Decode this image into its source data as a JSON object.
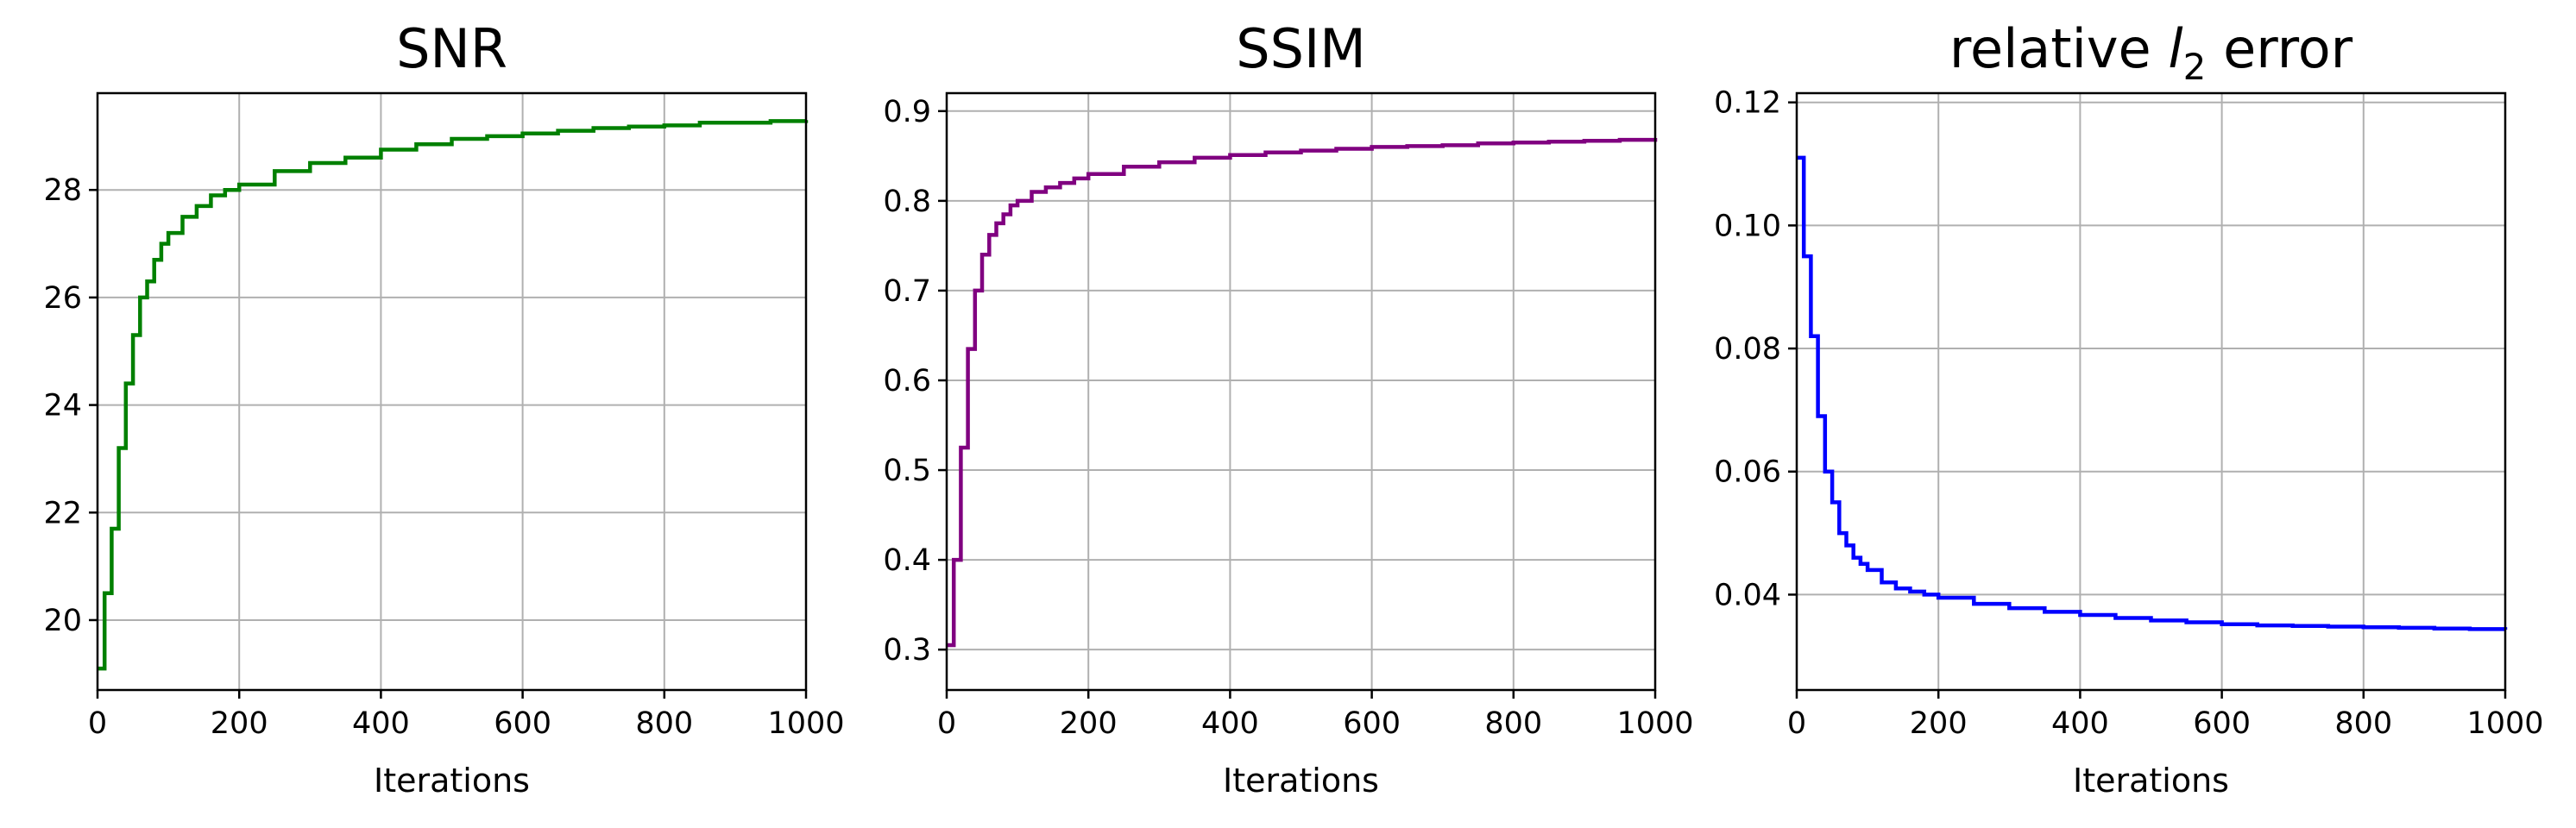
{
  "chart_data": [
    {
      "type": "line",
      "title": "SNR",
      "xlabel": "Iterations",
      "ylabel": "",
      "xlim": [
        0,
        1000
      ],
      "ylim": [
        18.7,
        29.8
      ],
      "xticks": [
        0,
        200,
        400,
        600,
        800,
        1000
      ],
      "yticks": [
        20,
        22,
        24,
        26,
        28
      ],
      "ytick_labels": [
        "20",
        "22",
        "24",
        "26",
        "28"
      ],
      "grid": true,
      "color": "#008000",
      "series": [
        {
          "x": [
            0,
            10,
            20,
            30,
            40,
            50,
            60,
            70,
            80,
            90,
            100,
            120,
            140,
            160,
            180,
            200,
            250,
            300,
            350,
            400,
            450,
            500,
            550,
            600,
            650,
            700,
            750,
            800,
            850,
            900,
            950,
            1000
          ],
          "y": [
            19.1,
            20.5,
            21.7,
            23.2,
            24.4,
            25.3,
            26.0,
            26.3,
            26.7,
            27.0,
            27.2,
            27.5,
            27.7,
            27.9,
            28.0,
            28.1,
            28.35,
            28.5,
            28.6,
            28.75,
            28.85,
            28.95,
            29.0,
            29.05,
            29.1,
            29.15,
            29.18,
            29.2,
            29.25,
            29.25,
            29.28,
            29.3
          ]
        }
      ]
    },
    {
      "type": "line",
      "title": "SSIM",
      "xlabel": "Iterations",
      "ylabel": "",
      "xlim": [
        0,
        1000
      ],
      "ylim": [
        0.255,
        0.92
      ],
      "xticks": [
        0,
        200,
        400,
        600,
        800,
        1000
      ],
      "yticks": [
        0.3,
        0.4,
        0.5,
        0.6,
        0.7,
        0.8,
        0.9
      ],
      "ytick_labels": [
        "0.3",
        "0.4",
        "0.5",
        "0.6",
        "0.7",
        "0.8",
        "0.9"
      ],
      "grid": true,
      "color": "#800080",
      "series": [
        {
          "x": [
            0,
            10,
            20,
            30,
            40,
            50,
            60,
            70,
            80,
            90,
            100,
            120,
            140,
            160,
            180,
            200,
            250,
            300,
            350,
            400,
            450,
            500,
            550,
            600,
            650,
            700,
            750,
            800,
            850,
            900,
            950,
            1000
          ],
          "y": [
            0.305,
            0.4,
            0.525,
            0.635,
            0.7,
            0.74,
            0.762,
            0.775,
            0.785,
            0.795,
            0.8,
            0.81,
            0.815,
            0.82,
            0.825,
            0.83,
            0.838,
            0.843,
            0.848,
            0.851,
            0.854,
            0.856,
            0.858,
            0.86,
            0.861,
            0.862,
            0.864,
            0.865,
            0.866,
            0.867,
            0.868,
            0.87
          ]
        }
      ]
    },
    {
      "type": "line",
      "title_prefix": "relative ",
      "title_var": "l",
      "title_sub": "2",
      "title_suffix": " error",
      "xlabel": "Iterations",
      "ylabel": "",
      "xlim": [
        0,
        1000
      ],
      "ylim": [
        0.0245,
        0.1215
      ],
      "xticks": [
        0,
        200,
        400,
        600,
        800,
        1000
      ],
      "yticks": [
        0.04,
        0.06,
        0.08,
        0.1,
        0.12
      ],
      "ytick_labels": [
        "0.04",
        "0.06",
        "0.08",
        "0.10",
        "0.12"
      ],
      "grid": true,
      "color": "#0000ff",
      "series": [
        {
          "x": [
            0,
            10,
            20,
            30,
            40,
            50,
            60,
            70,
            80,
            90,
            100,
            120,
            140,
            160,
            180,
            200,
            250,
            300,
            350,
            400,
            450,
            500,
            550,
            600,
            650,
            700,
            750,
            800,
            850,
            900,
            950,
            1000
          ],
          "y": [
            0.111,
            0.095,
            0.082,
            0.069,
            0.06,
            0.055,
            0.05,
            0.048,
            0.046,
            0.045,
            0.044,
            0.042,
            0.041,
            0.0405,
            0.04,
            0.0395,
            0.0385,
            0.0378,
            0.0372,
            0.0367,
            0.0362,
            0.0358,
            0.0355,
            0.0352,
            0.035,
            0.0349,
            0.0348,
            0.0347,
            0.0346,
            0.0345,
            0.0344,
            0.0343
          ]
        }
      ]
    }
  ]
}
